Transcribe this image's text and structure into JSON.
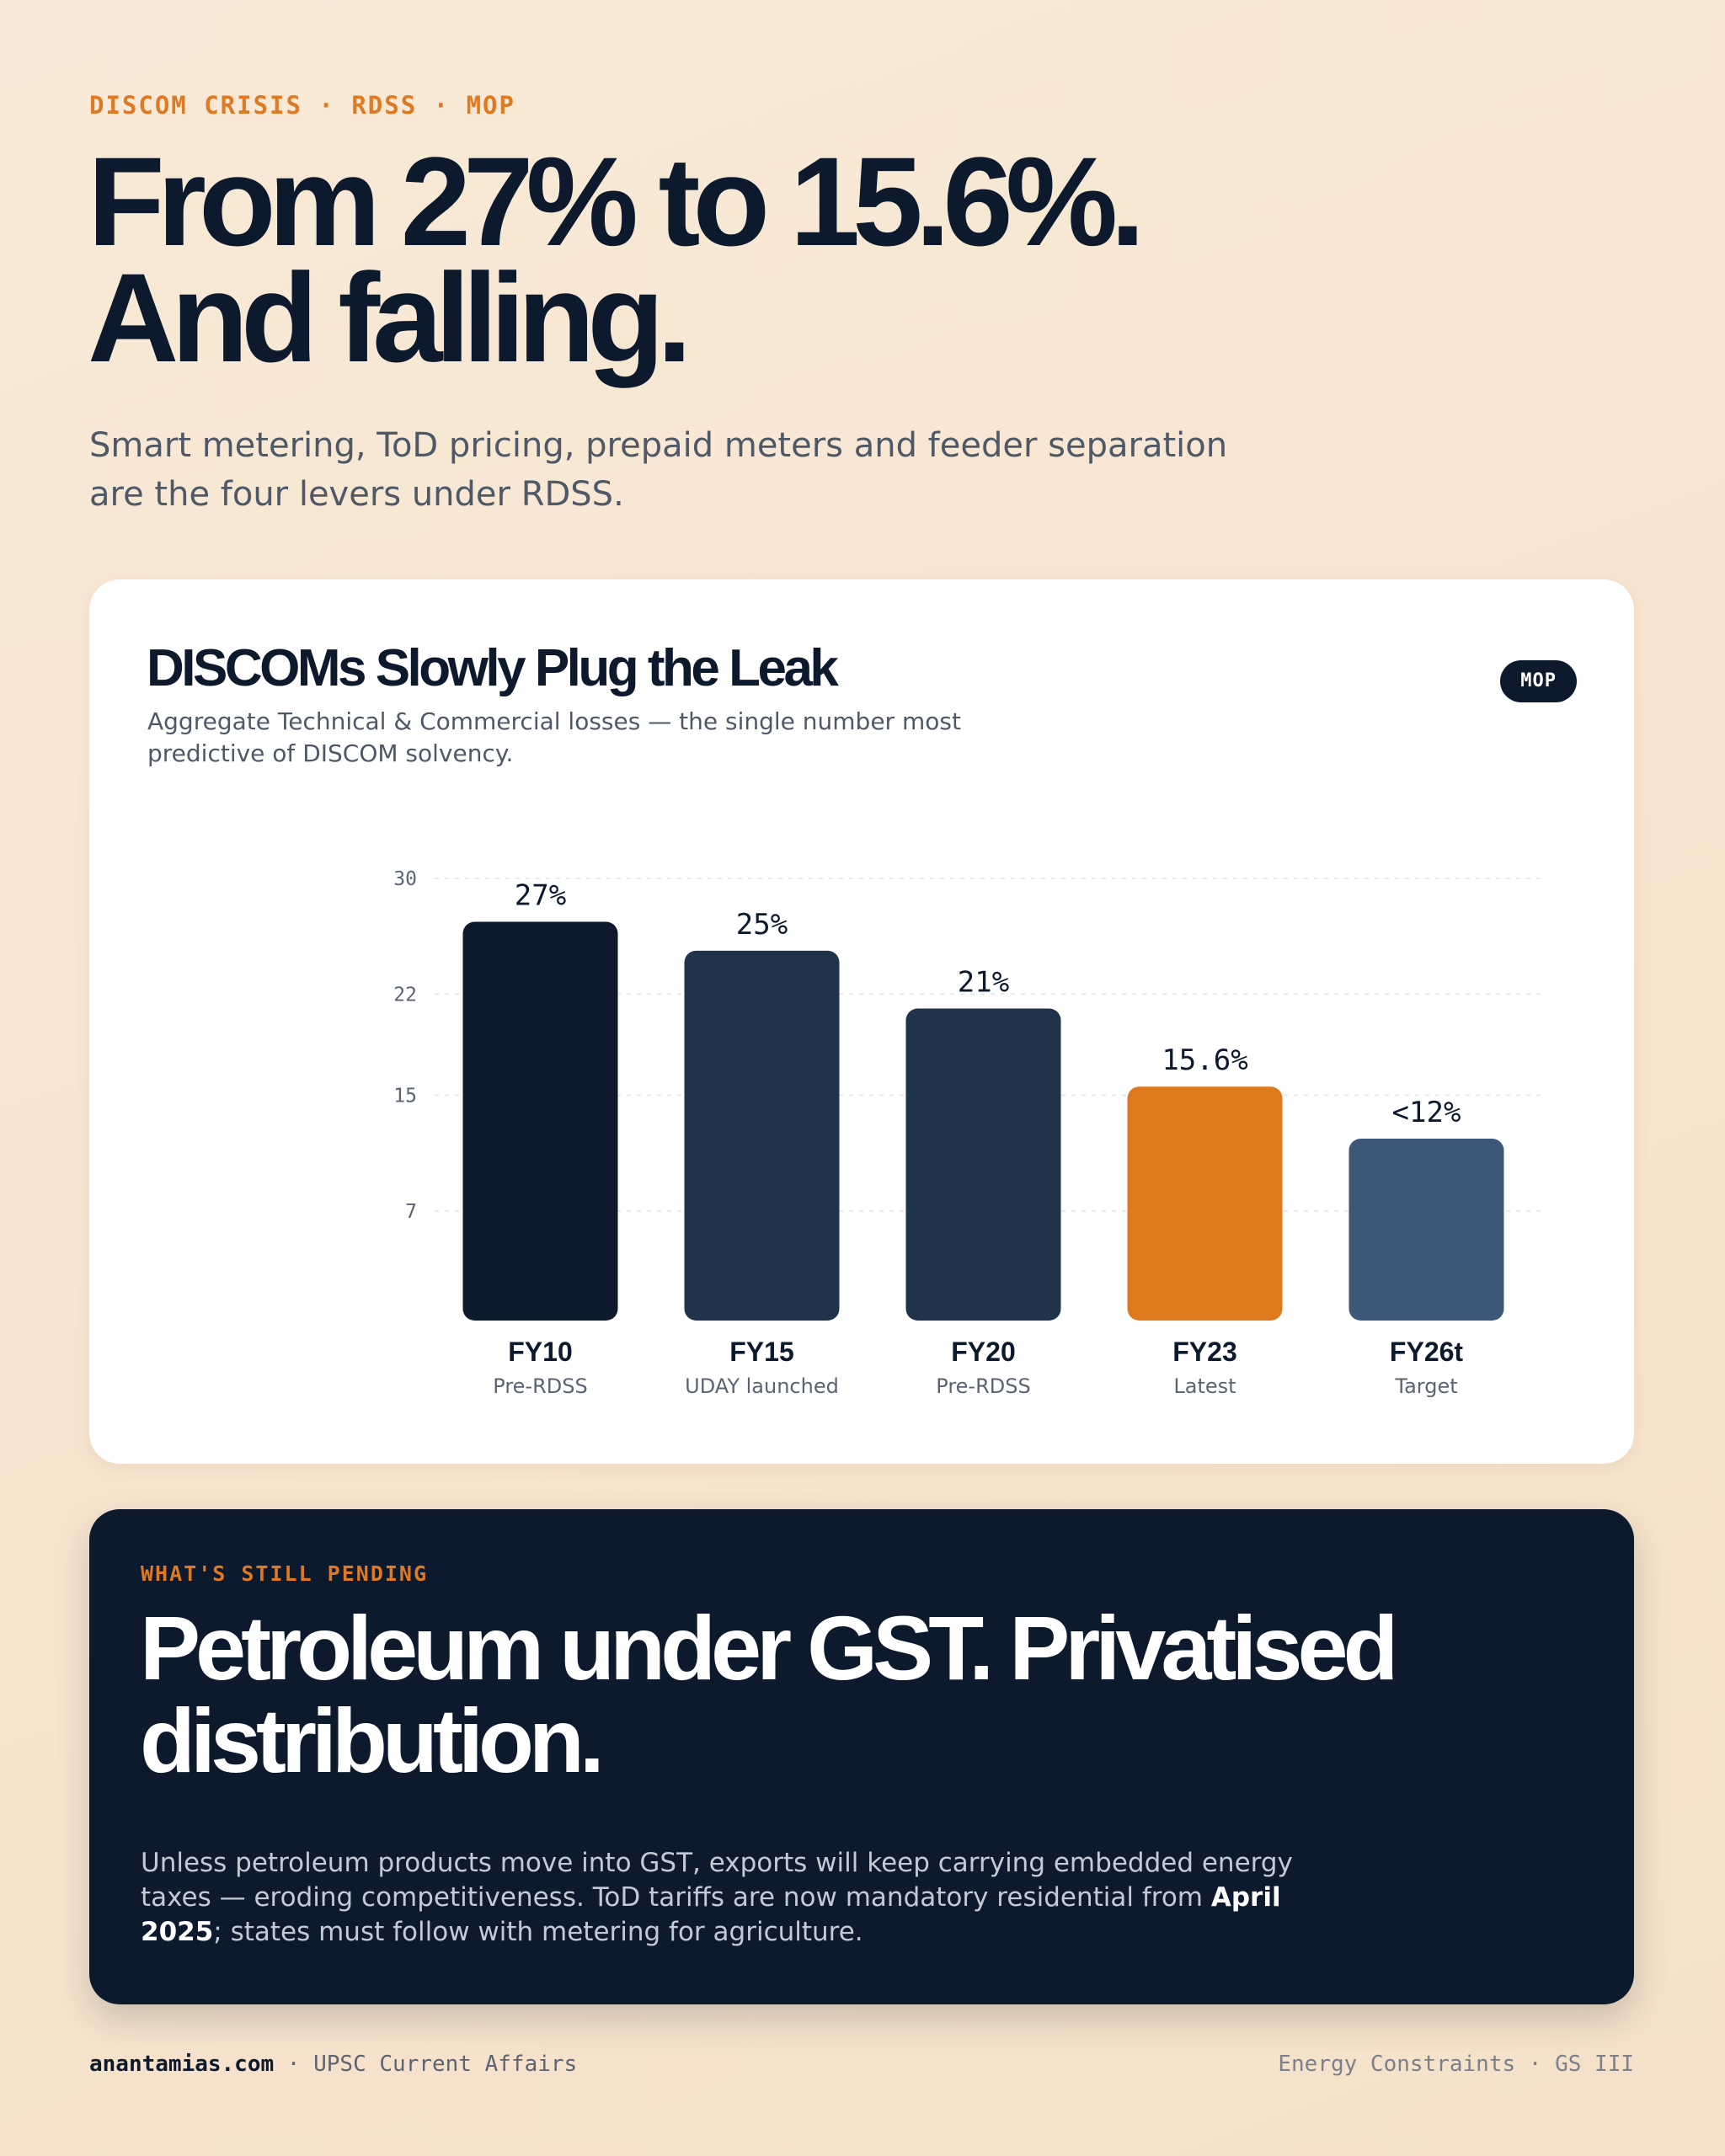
{
  "kicker": "DISCOM CRISIS · RDSS · MOP",
  "headline": {
    "line1": "From 27% to 15.6%.",
    "line2": "And falling."
  },
  "subhead": "Smart metering, ToD pricing, prepaid meters and feeder separation are the four levers under RDSS.",
  "card": {
    "title": "DISCOMs Slowly Plug the Leak",
    "subtitle": "Aggregate Technical & Commercial losses — the single number most predictive of DISCOM solvency.",
    "badge": "MOP"
  },
  "colors": {
    "navy": "#0d1a2d",
    "slate": "#21324b",
    "steel": "#3c5777",
    "orange": "#df7a1c"
  },
  "chart_data": {
    "type": "bar",
    "title": "DISCOMs Slowly Plug the Leak",
    "xlabel": "",
    "ylabel": "",
    "ylim": [
      0,
      30
    ],
    "yticks": [
      7,
      15,
      22,
      30
    ],
    "grid": true,
    "categories": [
      "FY10",
      "FY15",
      "FY20",
      "FY23",
      "FY26t"
    ],
    "category_sublabels": [
      "Pre-RDSS",
      "UDAY launched",
      "Pre-RDSS",
      "Latest",
      "Target"
    ],
    "values": [
      27,
      25,
      21,
      15.6,
      12
    ],
    "value_labels": [
      "27%",
      "25%",
      "21%",
      "15.6%",
      "<12%"
    ],
    "bar_colors": [
      "#0d1a2d",
      "#21324b",
      "#21324b",
      "#df7a1c",
      "#3c5777"
    ]
  },
  "pending": {
    "kicker": "WHAT'S STILL PENDING",
    "title": "Petroleum under GST. Privatised distribution.",
    "body_before": "Unless petroleum products move into GST, exports will keep carrying embedded energy taxes — eroding competitiveness. ToD tariffs are now mandatory residential from ",
    "body_emphasis": "April 2025",
    "body_after": "; states must follow with metering for agriculture."
  },
  "footer": {
    "site": "anantamias.com",
    "separator": " · ",
    "left_suffix": "UPSC Current Affairs",
    "right": "Energy Constraints · GS III"
  }
}
